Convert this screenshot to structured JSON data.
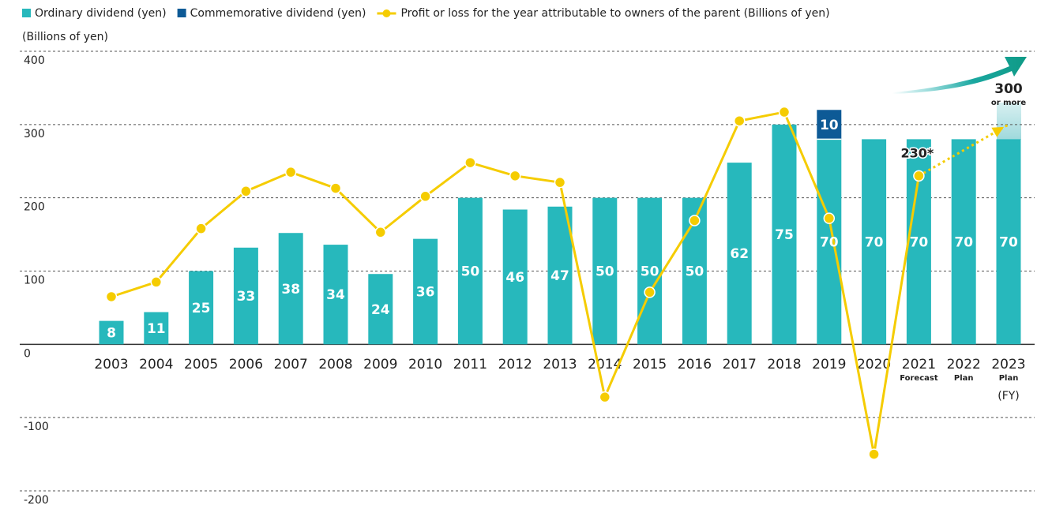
{
  "chart_data": {
    "type": "bar",
    "y_label": "(Billions of yen)",
    "x_label": "(FY)",
    "categories": [
      "2003",
      "2004",
      "2005",
      "2006",
      "2007",
      "2008",
      "2009",
      "2010",
      "2011",
      "2012",
      "2013",
      "2014",
      "2015",
      "2016",
      "2017",
      "2018",
      "2019",
      "2020",
      "2021",
      "2022",
      "2023"
    ],
    "category_sublabels": [
      null,
      null,
      null,
      null,
      null,
      null,
      null,
      null,
      null,
      null,
      null,
      null,
      null,
      null,
      null,
      null,
      null,
      null,
      "Forecast",
      "Plan",
      "Plan"
    ],
    "ylim": [
      -200,
      400
    ],
    "yticks": [
      -200,
      -100,
      0,
      100,
      200,
      300,
      400
    ],
    "y2lim": [
      -50,
      100
    ],
    "grid": true,
    "series": [
      {
        "name": "Ordinary dividend (yen)",
        "type": "bar",
        "axis": "y2",
        "color": "#27b8bc",
        "values": [
          8,
          11,
          25,
          33,
          38,
          34,
          24,
          36,
          50,
          46,
          47,
          50,
          50,
          50,
          62,
          75,
          70,
          70,
          70,
          70,
          70
        ]
      },
      {
        "name": "Commemorative dividend (yen)",
        "type": "bar",
        "stacked": true,
        "axis": "y2",
        "color": "#0d5a96",
        "values": [
          null,
          null,
          null,
          null,
          null,
          null,
          null,
          null,
          null,
          null,
          null,
          null,
          null,
          null,
          null,
          null,
          10,
          null,
          null,
          null,
          null
        ]
      },
      {
        "name": "Profit or loss for the year attributable to owners of the parent (Billions of yen)",
        "type": "line",
        "color": "#f5cc00",
        "values": [
          65,
          85,
          158,
          209,
          235,
          213,
          153,
          202,
          248,
          230,
          221,
          -72,
          71,
          169,
          305,
          317,
          172,
          -150,
          230,
          null,
          300
        ],
        "value_labels": [
          null,
          null,
          null,
          null,
          null,
          null,
          null,
          null,
          null,
          null,
          null,
          null,
          null,
          null,
          null,
          null,
          null,
          null,
          "230*",
          null,
          "300"
        ],
        "dashed_from": "2021",
        "annotation": "or more"
      }
    ]
  }
}
